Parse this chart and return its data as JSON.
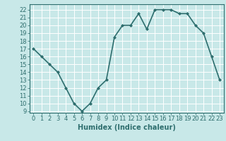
{
  "xlabel": "Humidex (Indice chaleur)",
  "x": [
    0,
    1,
    2,
    3,
    4,
    5,
    6,
    7,
    8,
    9,
    10,
    11,
    12,
    13,
    14,
    15,
    16,
    17,
    18,
    19,
    20,
    21,
    22,
    23
  ],
  "y": [
    17,
    16,
    15,
    14,
    12,
    10,
    9,
    10,
    12,
    13,
    18.5,
    20,
    20,
    21.5,
    19.5,
    22,
    22,
    22,
    21.5,
    21.5,
    20,
    19,
    16,
    13
  ],
  "xlim": [
    -0.5,
    23.5
  ],
  "ylim": [
    8.8,
    22.7
  ],
  "yticks": [
    9,
    10,
    11,
    12,
    13,
    14,
    15,
    16,
    17,
    18,
    19,
    20,
    21,
    22
  ],
  "xticks": [
    0,
    1,
    2,
    3,
    4,
    5,
    6,
    7,
    8,
    9,
    10,
    11,
    12,
    13,
    14,
    15,
    16,
    17,
    18,
    19,
    20,
    21,
    22,
    23
  ],
  "line_color": "#2e6e6e",
  "marker": "D",
  "marker_size": 2.0,
  "bg_color": "#c8e8e8",
  "grid_color": "#ffffff",
  "axis_color": "#2e6e6e",
  "label_color": "#2e6e6e",
  "tick_color": "#2e6e6e",
  "line_width": 1.2,
  "xlabel_fontsize": 7,
  "tick_fontsize": 6
}
